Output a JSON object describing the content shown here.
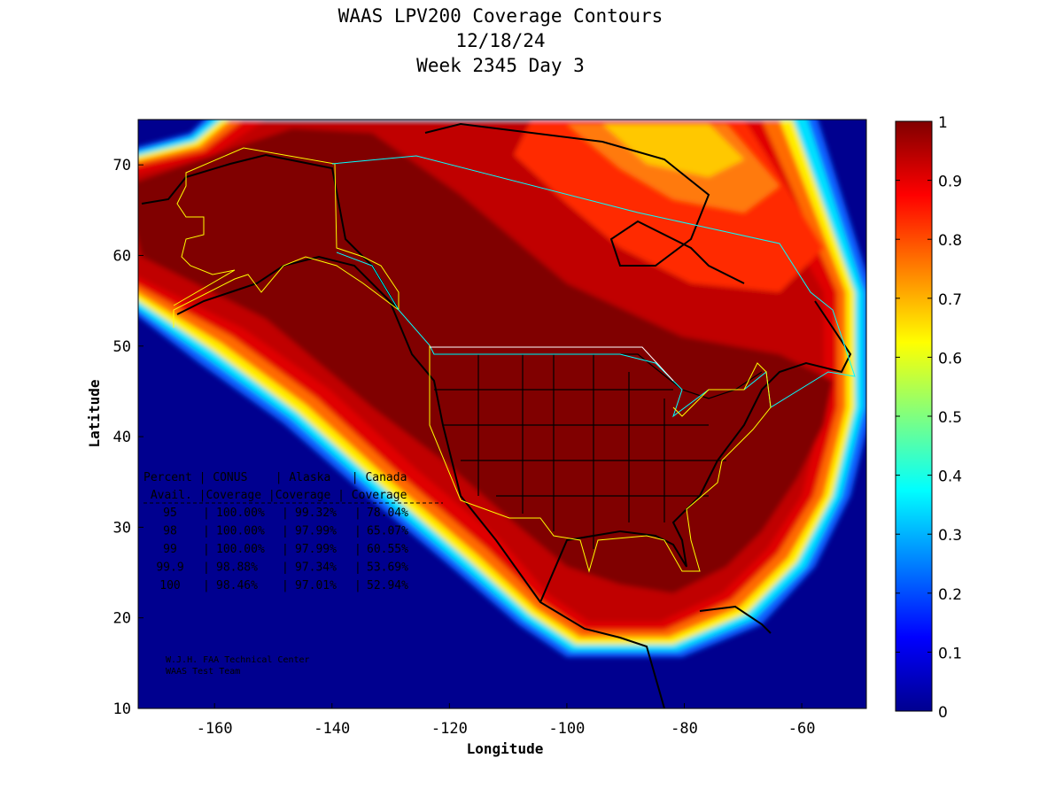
{
  "chart_data": {
    "type": "heatmap",
    "title": [
      "WAAS LPV200 Coverage Contours",
      "12/18/24",
      "Week 2345 Day 3"
    ],
    "xlabel": "Longitude",
    "ylabel": "Latitude",
    "xlim": [
      -173,
      -49
    ],
    "ylim": [
      10,
      75
    ],
    "xticks": [
      -160,
      -140,
      -120,
      -100,
      -80,
      -60
    ],
    "yticks": [
      10,
      20,
      30,
      40,
      50,
      60,
      70
    ],
    "colorbar": {
      "range": [
        0,
        1
      ],
      "ticks": [
        "0",
        "0.1",
        "0.2",
        "0.3",
        "0.4",
        "0.5",
        "0.6",
        "0.7",
        "0.8",
        "0.9",
        "1"
      ],
      "colormap": "jet"
    },
    "table": {
      "header1": "Percent | CONUS    | Alaska   | Canada",
      "header2": " Avail. |Coverage |Coverage | Coverage",
      "rows": [
        {
          "avail": "95",
          "conus": "100.00%",
          "alaska": "99.32%",
          "canada": "78.04%"
        },
        {
          "avail": "98",
          "conus": "100.00%",
          "alaska": "97.99%",
          "canada": "65.07%"
        },
        {
          "avail": "99",
          "conus": "100.00%",
          "alaska": "97.99%",
          "canada": "60.55%"
        },
        {
          "avail": "99.9",
          "conus": "98.88%",
          "alaska": "97.34%",
          "canada": "53.69%"
        },
        {
          "avail": "100",
          "conus": "98.46%",
          "alaska": "97.01%",
          "canada": "52.94%"
        }
      ]
    },
    "credit": [
      "W.J.H. FAA Technical Center",
      "WAAS Test Team"
    ]
  }
}
